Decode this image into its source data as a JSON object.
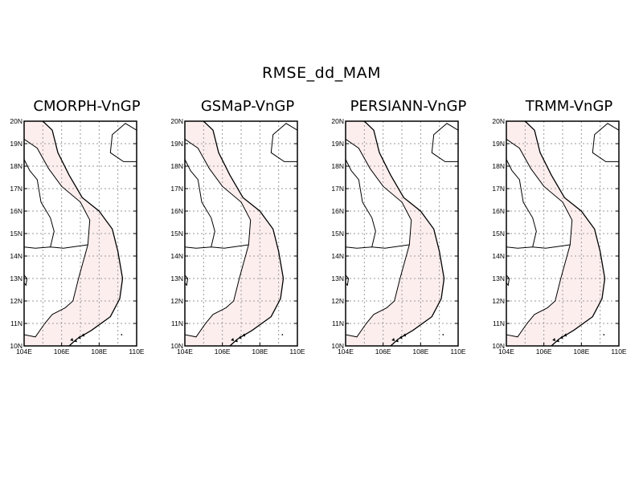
{
  "figure": {
    "title": "RMSE_dd_MAM"
  },
  "colors": {
    "land_fill": "#fdeeee",
    "coast_line": "#000000",
    "grid_line": "#9a9a9a",
    "frame": "#000000"
  },
  "map_extent": {
    "lon_range": [
      104,
      110
    ],
    "lat_range": [
      10,
      20
    ]
  },
  "axes": {
    "lat_ticks": [
      "10N",
      "11N",
      "12N",
      "13N",
      "14N",
      "15N",
      "16N",
      "17N",
      "18N",
      "19N",
      "20N"
    ],
    "lon_ticks": [
      "104E",
      "106E",
      "108E",
      "110E"
    ]
  },
  "panels": [
    {
      "title": "CMORPH-VnGP"
    },
    {
      "title": "GSMaP-VnGP"
    },
    {
      "title": "PERSIANN-VnGP"
    },
    {
      "title": "TRMM-VnGP"
    }
  ]
}
